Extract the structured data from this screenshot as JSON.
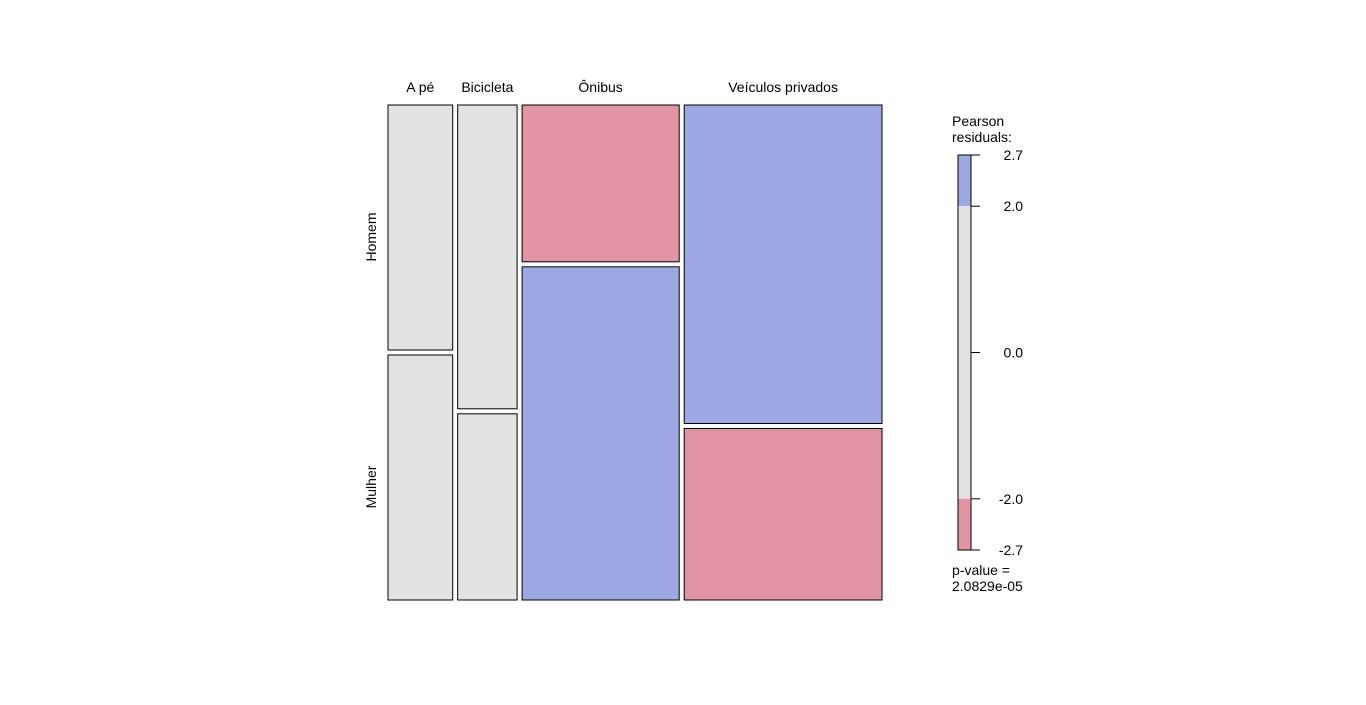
{
  "chart_data": {
    "type": "mosaic",
    "columns": [
      "A pé",
      "Bicicleta",
      "Ônibus",
      "Veículos privados"
    ],
    "rows": [
      "Homem",
      "Mulher"
    ],
    "column_proportions": [
      0.135,
      0.124,
      0.328,
      0.413
    ],
    "row_proportions_within_column": [
      [
        0.5,
        0.5
      ],
      [
        0.62,
        0.38
      ],
      [
        0.32,
        0.68
      ],
      [
        0.65,
        0.35
      ]
    ],
    "cell_shading": [
      [
        "neutral",
        "neutral"
      ],
      [
        "neutral",
        "neutral"
      ],
      [
        "negative",
        "positive"
      ],
      [
        "positive",
        "negative"
      ]
    ],
    "legend": {
      "title_line1": "Pearson",
      "title_line2": "residuals:",
      "range": [
        -2.7,
        2.7
      ],
      "ticks": [
        {
          "value": 2.7,
          "label": "2.7"
        },
        {
          "value": 2.0,
          "label": "2.0"
        },
        {
          "value": 0.0,
          "label": "0.0"
        },
        {
          "value": -2.0,
          "label": "-2.0"
        },
        {
          "value": -2.7,
          "label": "-2.7"
        }
      ]
    },
    "pvalue_line1": "p-value =",
    "pvalue_line2": "2.0829e-05"
  },
  "colors": {
    "positive": "#9DA8E3",
    "negative": "#E294A5",
    "neutral": "#E2E2E2",
    "stroke": "#000000"
  }
}
